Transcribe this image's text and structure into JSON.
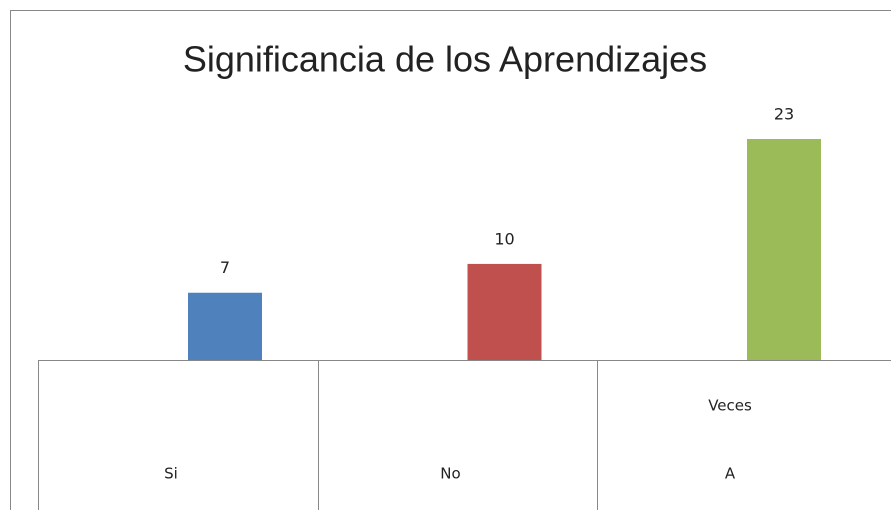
{
  "chart_data": {
    "type": "bar",
    "title": "Significancia de los Aprendizajes",
    "categories": [
      [
        "Si"
      ],
      [
        "No"
      ],
      [
        "Veces",
        "A"
      ]
    ],
    "values": [
      7,
      10,
      23
    ],
    "colors": [
      "#4f81bd",
      "#c0504d",
      "#9bbb59"
    ]
  }
}
